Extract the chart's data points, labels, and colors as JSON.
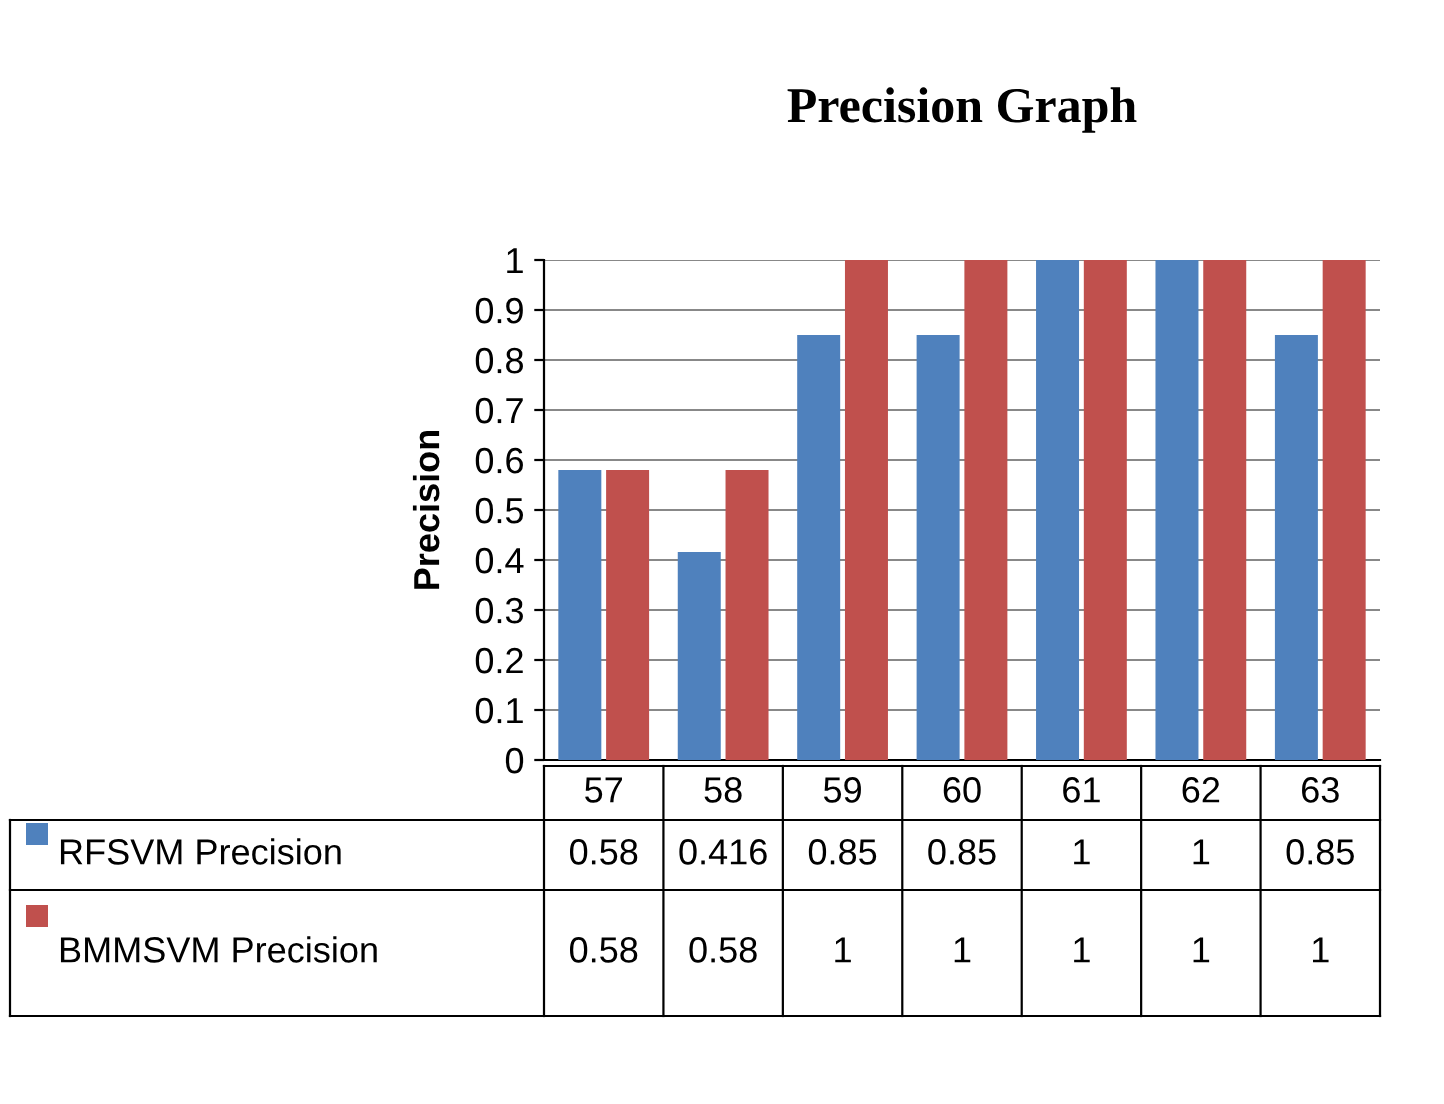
{
  "chart_data": {
    "type": "bar",
    "title": "Precision Graph",
    "ylabel": "Precision",
    "categories": [
      "57",
      "58",
      "59",
      "60",
      "61",
      "62",
      "63"
    ],
    "series": [
      {
        "name": "RFSVM Precision",
        "color": "#4f81bd",
        "values": [
          0.58,
          0.416,
          0.85,
          0.85,
          1,
          1,
          0.85
        ]
      },
      {
        "name": "BMMSVM Precision",
        "color": "#c0504d",
        "values": [
          0.58,
          0.58,
          1,
          1,
          1,
          1,
          1
        ]
      }
    ],
    "ylim": [
      0,
      1
    ],
    "yticks": [
      0,
      0.1,
      0.2,
      0.3,
      0.4,
      0.5,
      0.6,
      0.7,
      0.8,
      0.9,
      1
    ],
    "grid": "y",
    "legend": "bottom",
    "data_labels": true
  }
}
